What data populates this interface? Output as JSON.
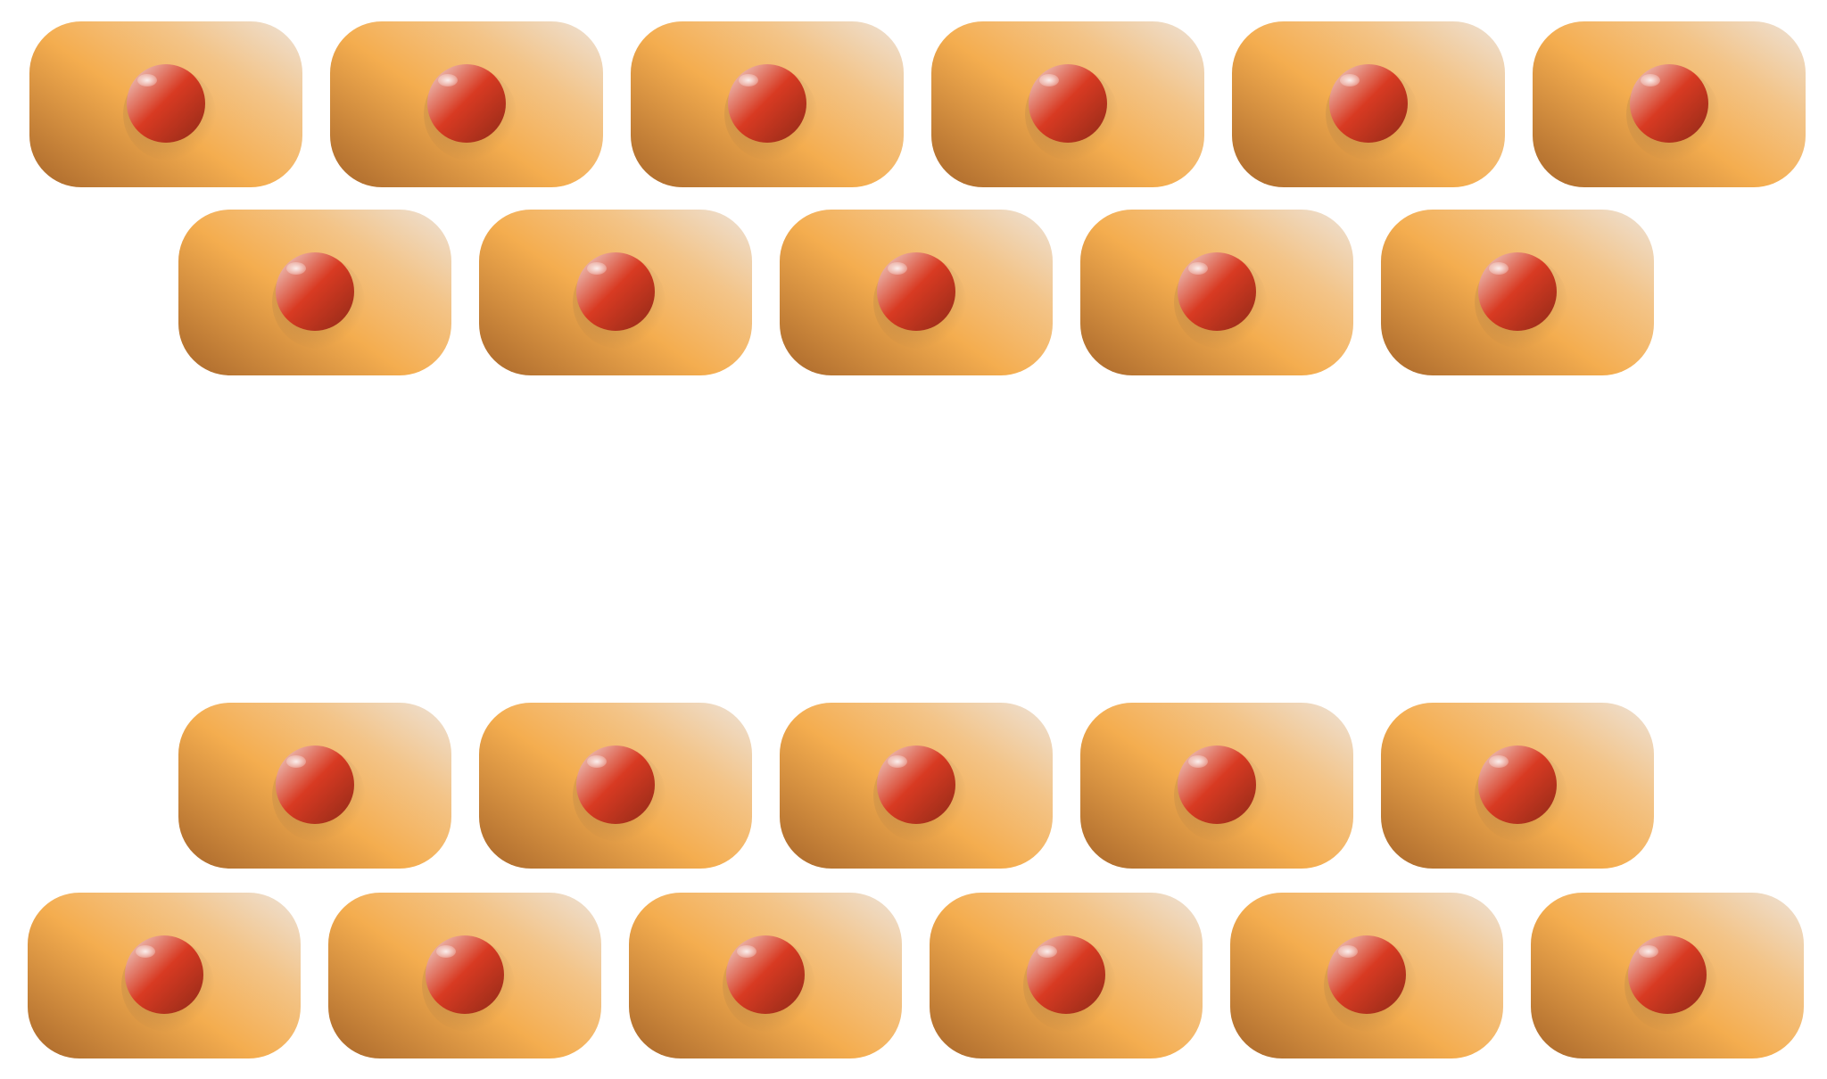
{
  "colors": {
    "cell_dark": "#a8662a",
    "cell_mid": "#f4ad4f",
    "cell_light": "#ede2d8",
    "cell_highlight": "#f3c488",
    "nucleus_dark": "#8f2a18",
    "nucleus_mid": "#d83a22",
    "nucleus_light": "#f1ddd7"
  },
  "rows": [
    {
      "name": "top-outer-row",
      "cells": 6
    },
    {
      "name": "top-inner-row",
      "cells": 5
    },
    {
      "name": "bottom-inner-row",
      "cells": 5
    },
    {
      "name": "bottom-outer-row",
      "cells": 6
    }
  ],
  "icons": {
    "cell": "rounded-rectangle-cell",
    "nucleus": "red-sphere-nucleus"
  }
}
